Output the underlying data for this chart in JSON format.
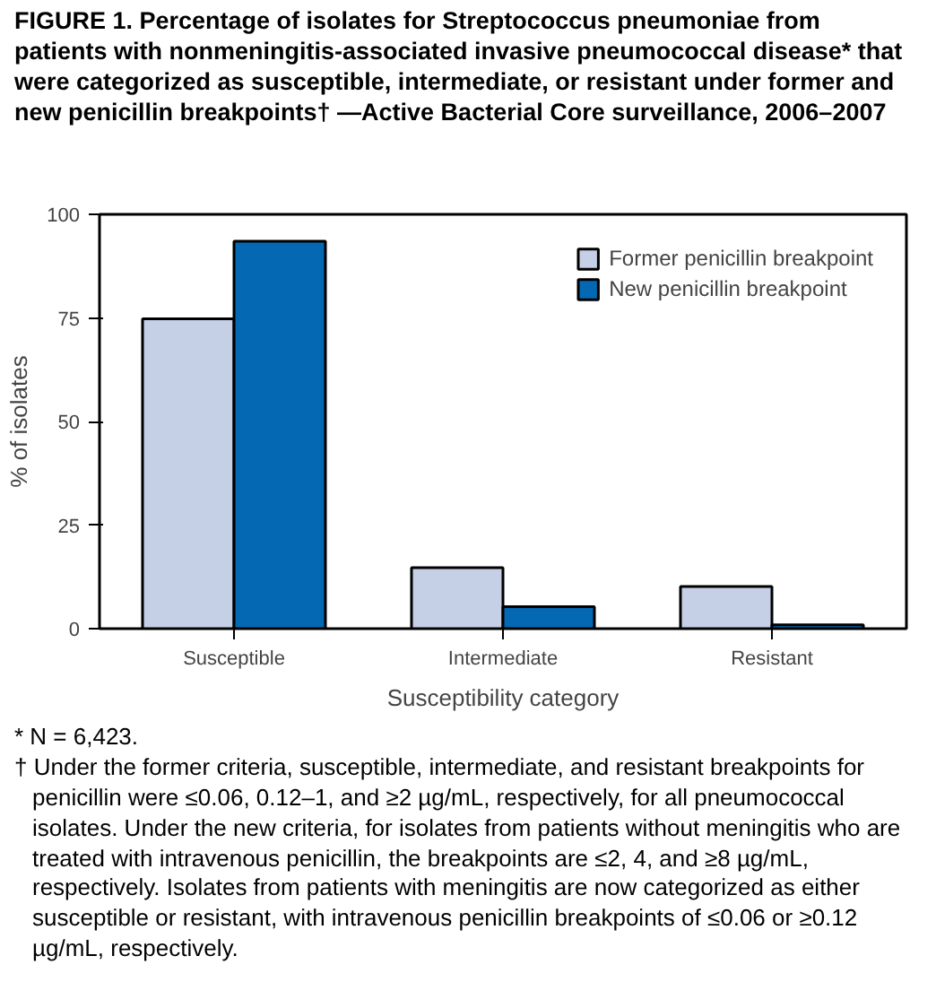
{
  "chart_data": {
    "type": "bar",
    "title": "FIGURE 1. Percentage of isolates for Streptococcus pneumoniae from patients with nonmeningitis-associated invasive pneumococcal disease* that were categorized as susceptible, intermediate, or resistant under former and new penicillin breakpoints† —Active Bacterial Core surveillance, 2006–2007",
    "xlabel": "Susceptibility category",
    "ylabel": "% of isolates",
    "categories": [
      "Susceptible",
      "Intermediate",
      "Resistant"
    ],
    "series": [
      {
        "name": "Former penicillin breakpoint",
        "color": "#c5d0e6",
        "values": [
          74.8,
          14.7,
          10.2
        ]
      },
      {
        "name": "New penicillin breakpoint",
        "color": "#0568b3",
        "values": [
          93.5,
          5.3,
          0.9
        ]
      }
    ],
    "ylim": [
      0,
      100
    ],
    "yticks": [
      0,
      25,
      50,
      75,
      100
    ],
    "grid": false,
    "legend": "top right",
    "annotations": [
      "* N = 6,423.",
      "† Under the former criteria, susceptible, intermediate, and resistant breakpoints for penicillin were ≤0.06, 0.12–1, and ≥2 µg/mL, respectively, for all pneumococcal isolates. Under the new criteria, for isolates from patients without meningitis who are treated with intravenous penicillin, the breakpoints are ≤2, 4, and ≥8 µg/mL, respectively. Isolates from patients with meningitis are now categorized as either susceptible or resistant, with intravenous penicillin breakpoints of ≤0.06 or ≥0.12 µg/mL, respectively."
    ]
  }
}
